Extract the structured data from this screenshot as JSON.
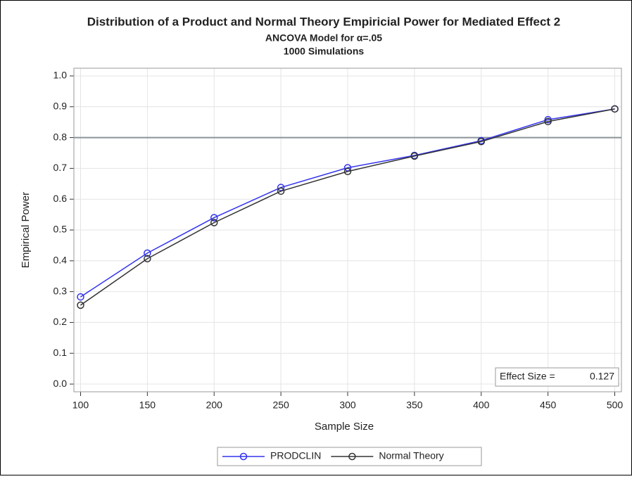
{
  "chart_data": {
    "type": "line",
    "title": "Distribution of a Product and Normal Theory Empiricial Power for Mediated Effect 2",
    "subtitles": [
      "ANCOVA Model for α=.05",
      "1000 Simulations"
    ],
    "x_label": "Sample Size",
    "y_label": "Empirical Power",
    "x": [
      100,
      150,
      200,
      250,
      300,
      350,
      400,
      450,
      500
    ],
    "series": [
      {
        "name": "PRODCLIN",
        "color": "#3333ee",
        "values": [
          0.283,
          0.425,
          0.54,
          0.638,
          0.702,
          0.742,
          0.79,
          0.858,
          0.893
        ]
      },
      {
        "name": "Normal Theory",
        "color": "#333333",
        "values": [
          0.256,
          0.407,
          0.524,
          0.626,
          0.69,
          0.74,
          0.787,
          0.852,
          0.893
        ]
      }
    ],
    "xlim": [
      95,
      505
    ],
    "ylim": [
      -0.025,
      1.025
    ],
    "xticks": [
      100,
      150,
      200,
      250,
      300,
      350,
      400,
      450,
      500
    ],
    "yticks": [
      {
        "value": 0,
        "label": "0.0"
      },
      0.1,
      0.2,
      0.3,
      0.4,
      0.5,
      0.6,
      0.7,
      0.8,
      0.9,
      {
        "value": 1,
        "label": "1.0"
      }
    ],
    "reference_line": 0.8,
    "reference_line_color": "#8a9499",
    "annotation": {
      "label": "Effect Size =",
      "value": 0.127
    },
    "grid": true,
    "legend": "bottom"
  }
}
